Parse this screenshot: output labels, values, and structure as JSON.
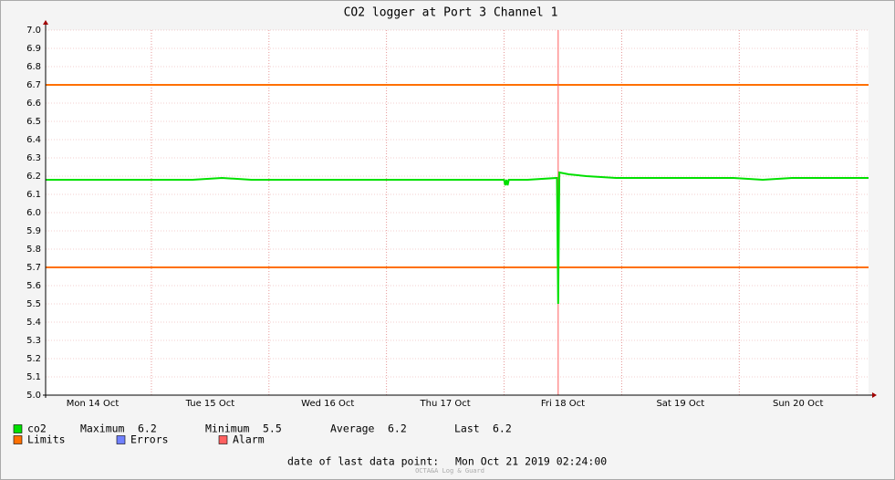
{
  "chart_data": {
    "type": "line",
    "title": "CO2 logger at Port 3 Channel 1",
    "x": [
      14.1,
      14.35,
      14.6,
      14.85,
      15.1,
      15.35,
      15.6,
      15.85,
      16.1,
      16.35,
      16.6,
      16.85,
      17.1,
      17.35,
      17.6,
      17.85,
      18.0,
      18.01,
      18.02,
      18.03,
      18.04,
      18.2,
      18.45,
      18.46,
      18.465,
      18.47,
      18.55,
      18.7,
      18.95,
      19.2,
      19.45,
      19.7,
      19.95,
      20.2,
      20.45,
      20.7,
      20.95,
      21.1
    ],
    "series": [
      {
        "name": "co2",
        "color": "#00e000",
        "values": [
          6.18,
          6.18,
          6.18,
          6.18,
          6.18,
          6.18,
          6.19,
          6.18,
          6.18,
          6.18,
          6.18,
          6.18,
          6.18,
          6.18,
          6.18,
          6.18,
          6.18,
          6.15,
          6.18,
          6.15,
          6.18,
          6.18,
          6.19,
          5.5,
          5.9,
          6.22,
          6.21,
          6.2,
          6.19,
          6.19,
          6.19,
          6.19,
          6.19,
          6.18,
          6.19,
          6.19,
          6.19,
          6.19
        ]
      }
    ],
    "stats": [
      {
        "label": "Maximum",
        "value": 6.2
      },
      {
        "label": "Minimum",
        "value": 5.5
      },
      {
        "label": "Average",
        "value": 6.2
      },
      {
        "label": "Last",
        "value": 6.2
      }
    ],
    "limits": {
      "name": "Limits",
      "color": "#ff7000",
      "values": [
        5.7,
        6.7
      ]
    },
    "errors": {
      "name": "Errors",
      "color": "#7080ff"
    },
    "alarm": {
      "name": "Alarm",
      "color": "#ff6060",
      "x": [
        18.46
      ]
    },
    "xlim": [
      14.1,
      21.1
    ],
    "xticks": [
      {
        "value": 14.5,
        "label": "Mon 14 Oct"
      },
      {
        "value": 15.5,
        "label": "Tue 15 Oct"
      },
      {
        "value": 16.5,
        "label": "Wed 16 Oct"
      },
      {
        "value": 17.5,
        "label": "Thu 17 Oct"
      },
      {
        "value": 18.5,
        "label": "Fri 18 Oct"
      },
      {
        "value": 19.5,
        "label": "Sat 19 Oct"
      },
      {
        "value": 20.5,
        "label": "Sun 20 Oct"
      }
    ],
    "xgrid": [
      15,
      16,
      17,
      18,
      19,
      20,
      21
    ],
    "ylim": [
      5.0,
      7.0
    ],
    "yticks": [
      {
        "value": 5.0,
        "label": "5.0"
      },
      5.1,
      5.2,
      5.3,
      5.4,
      5.5,
      5.6,
      5.7,
      5.8,
      5.9,
      {
        "value": 6.0,
        "label": "6.0"
      },
      6.1,
      6.2,
      6.3,
      6.4,
      6.5,
      6.6,
      6.7,
      6.8,
      6.9,
      {
        "value": 7.0,
        "label": "7.0"
      }
    ],
    "grid": true,
    "footer": {
      "label": "date of last data point:",
      "value": "Mon Oct 21 2019 02:24:00"
    },
    "watermark": "OCTA&A Log & Guard"
  }
}
